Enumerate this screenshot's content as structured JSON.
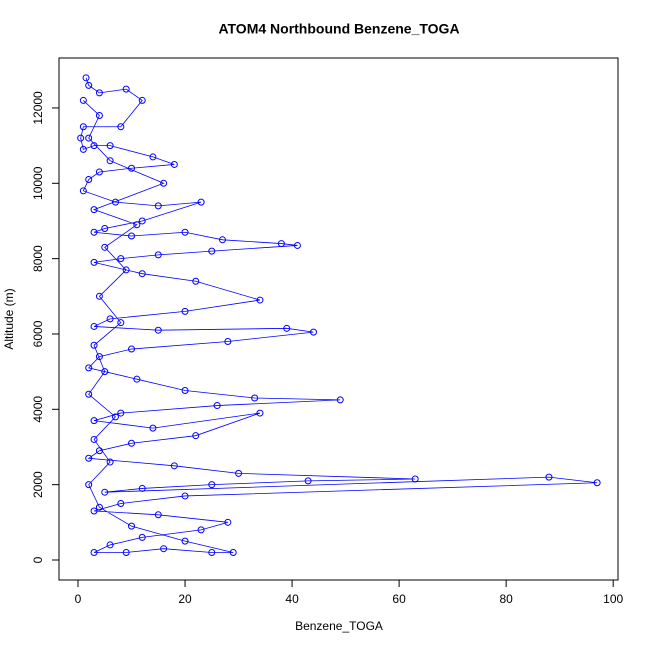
{
  "chart_data": {
    "type": "line",
    "title": "ATOM4 Northbound Benzene_TOGA",
    "x_label": "Benzene_TOGA",
    "y_label": "Altitude (m)",
    "series": [
      {
        "color": "#0000ff",
        "x": [
          1.5,
          2,
          4,
          9,
          12,
          8,
          1,
          0.5,
          1,
          3,
          6,
          14,
          18,
          10,
          4,
          2,
          1,
          7,
          15,
          23,
          12,
          5,
          3,
          10,
          20,
          27,
          38,
          41,
          25,
          15,
          8,
          3,
          12,
          22,
          34,
          20,
          6,
          3,
          15,
          39,
          44,
          28,
          10,
          4,
          2,
          11,
          20,
          33,
          49,
          26,
          8,
          3,
          14,
          34,
          22,
          10,
          4,
          2,
          18,
          30,
          63,
          43,
          25,
          12,
          5,
          88,
          97,
          20,
          8,
          3,
          15,
          28,
          23,
          12,
          6,
          3,
          9,
          16,
          25,
          29,
          20,
          10,
          4,
          2,
          6,
          3,
          7,
          2,
          5,
          3,
          8,
          4,
          9,
          5,
          11,
          3,
          16,
          6,
          2,
          4,
          1
        ],
        "values": [
          12800,
          12600,
          12400,
          12500,
          12200,
          11500,
          11500,
          11200,
          10900,
          11000,
          11000,
          10700,
          10500,
          10400,
          10300,
          10100,
          9800,
          9500,
          9400,
          9500,
          9000,
          8800,
          8700,
          8600,
          8700,
          8500,
          8400,
          8350,
          8200,
          8100,
          8000,
          7900,
          7600,
          7400,
          6900,
          6600,
          6400,
          6200,
          6100,
          6150,
          6050,
          5800,
          5600,
          5400,
          5100,
          4800,
          4500,
          4300,
          4250,
          4100,
          3900,
          3700,
          3500,
          3900,
          3300,
          3100,
          2900,
          2700,
          2500,
          2300,
          2150,
          2100,
          2000,
          1900,
          1800,
          2200,
          2050,
          1700,
          1500,
          1300,
          1200,
          1000,
          800,
          600,
          400,
          200,
          200,
          300,
          200,
          200,
          500,
          900,
          1400,
          2000,
          2600,
          3200,
          3800,
          4400,
          5000,
          5700,
          6300,
          7000,
          7700,
          8300,
          8900,
          9300,
          10000,
          10600,
          11200,
          11800,
          12200
        ]
      }
    ],
    "xlim": [
      -3.55,
      100.9
    ],
    "xticks": [
      0,
      20,
      40,
      60,
      80,
      100
    ],
    "ylim": [
      -531,
      13326
    ],
    "yticks": [
      0,
      2000,
      4000,
      6000,
      8000,
      10000,
      12000
    ]
  }
}
